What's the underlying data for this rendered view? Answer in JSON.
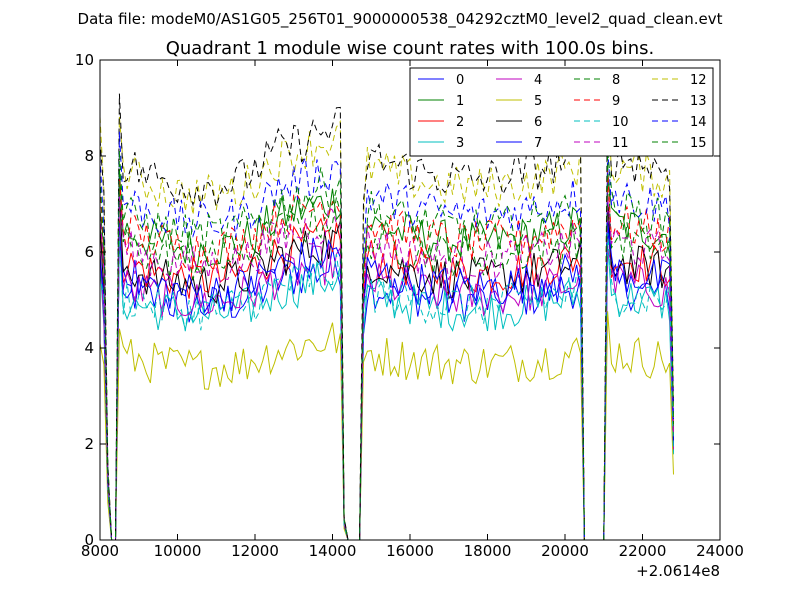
{
  "chart_data": {
    "type": "line",
    "suptitle": "Data file: modeM0/AS1G05_256T01_9000000538_04292cztM0_level2_quad_clean.evt",
    "title": "Quadrant 1 module wise count rates with 100.0s bins.",
    "xlabel": "",
    "ylabel": "",
    "x_offset_label": "+2.0614e8",
    "xlim": [
      8000,
      24000
    ],
    "ylim": [
      0,
      10
    ],
    "xticks": [
      "8000",
      "10000",
      "12000",
      "14000",
      "16000",
      "18000",
      "20000",
      "22000",
      "24000"
    ],
    "yticks": [
      "0",
      "2",
      "4",
      "6",
      "8",
      "10"
    ],
    "grid": false,
    "legend_position": "top-right",
    "x_start": 8000,
    "x_step": 100,
    "segments": [
      {
        "from": 8000,
        "to": 8400,
        "note": "initial drop to zero"
      },
      {
        "from": 8500,
        "to": 14300
      },
      {
        "from": 14800,
        "to": 20500
      },
      {
        "from": 21100,
        "to": 22800
      }
    ],
    "series": [
      {
        "name": "0",
        "color": "#0000ff",
        "dash": "solid",
        "level": 5.3
      },
      {
        "name": "1",
        "color": "#008000",
        "dash": "solid",
        "level": 6.6
      },
      {
        "name": "2",
        "color": "#ff0000",
        "dash": "solid",
        "level": 5.9
      },
      {
        "name": "3",
        "color": "#00bfbf",
        "dash": "solid",
        "level": 5.1
      },
      {
        "name": "4",
        "color": "#bf00bf",
        "dash": "solid",
        "level": 5.4
      },
      {
        "name": "5",
        "color": "#bfbf00",
        "dash": "solid",
        "level": 3.9
      },
      {
        "name": "6",
        "color": "#000000",
        "dash": "solid",
        "level": 5.8
      },
      {
        "name": "7",
        "color": "#0000ff",
        "dash": "solid",
        "level": 5.6
      },
      {
        "name": "8",
        "color": "#008000",
        "dash": "dashed",
        "level": 6.3
      },
      {
        "name": "9",
        "color": "#ff0000",
        "dash": "dashed",
        "level": 6.6
      },
      {
        "name": "10",
        "color": "#00bfbf",
        "dash": "dashed",
        "level": 5.2
      },
      {
        "name": "11",
        "color": "#bf00bf",
        "dash": "dashed",
        "level": 6.2
      },
      {
        "name": "12",
        "color": "#bfbf00",
        "dash": "dashed",
        "level": 7.8
      },
      {
        "name": "13",
        "color": "#000000",
        "dash": "dashed",
        "level": 8.0
      },
      {
        "name": "14",
        "color": "#0000ff",
        "dash": "dashed",
        "level": 7.2
      },
      {
        "name": "15",
        "color": "#008000",
        "dash": "dashed",
        "level": 6.9
      }
    ]
  }
}
